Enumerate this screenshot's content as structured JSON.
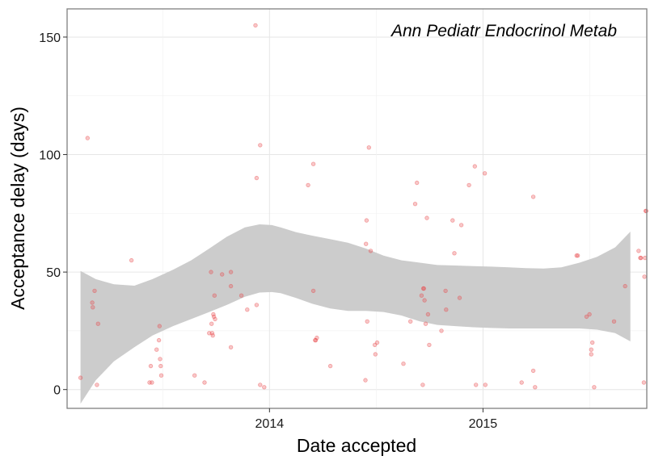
{
  "chart_data": {
    "type": "scatter",
    "title": "",
    "annotation": "Ann Pediatr Endocrinol Metab",
    "xlabel": "Date accepted",
    "ylabel": "Acceptance delay (days)",
    "x_ticks": [
      {
        "value": "2014-01-01",
        "label": "2014"
      },
      {
        "value": "2015-01-01",
        "label": "2015"
      }
    ],
    "y_ticks": [
      0,
      50,
      100,
      150
    ],
    "xlim": [
      "2013-01-20",
      "2015-10-08"
    ],
    "ylim": [
      -8,
      162
    ],
    "grid": true,
    "point_color": "#e8474a",
    "smooth_band_color": "#cccccc",
    "smooth_band": {
      "x": [
        "2013-02-12",
        "2013-03-10",
        "2013-04-10",
        "2013-05-15",
        "2013-06-15",
        "2013-07-20",
        "2013-08-20",
        "2013-09-20",
        "2013-10-20",
        "2013-11-20",
        "2013-12-15",
        "2014-01-05",
        "2014-01-20",
        "2014-02-15",
        "2014-03-15",
        "2014-04-15",
        "2014-05-15",
        "2014-06-15",
        "2014-07-15",
        "2014-08-15",
        "2014-09-15",
        "2014-10-15",
        "2014-11-15",
        "2014-12-15",
        "2015-01-15",
        "2015-02-15",
        "2015-03-15",
        "2015-04-15",
        "2015-05-15",
        "2015-06-15",
        "2015-07-15",
        "2015-08-15",
        "2015-09-10"
      ],
      "upper": [
        50.5,
        47.0,
        44.8,
        44.2,
        47.0,
        51.0,
        55.0,
        60.0,
        65.0,
        69.0,
        70.3,
        70.0,
        69.0,
        67.0,
        65.5,
        64.0,
        62.5,
        60.0,
        57.0,
        55.0,
        54.0,
        53.0,
        52.8,
        52.5,
        52.3,
        52.0,
        51.7,
        51.5,
        52.0,
        54.0,
        56.5,
        60.5,
        67.2
      ],
      "lower": [
        -6.0,
        4.0,
        12.0,
        18.0,
        23.0,
        27.0,
        30.0,
        33.0,
        36.0,
        39.5,
        41.3,
        41.5,
        41.0,
        39.0,
        36.5,
        34.5,
        33.5,
        33.5,
        33.0,
        31.5,
        29.0,
        27.5,
        27.0,
        26.5,
        26.2,
        26.0,
        26.0,
        26.0,
        26.0,
        26.0,
        25.5,
        24.0,
        20.5
      ]
    },
    "points": [
      {
        "x": "2013-02-12",
        "y": 5
      },
      {
        "x": "2013-02-24",
        "y": 107
      },
      {
        "x": "2013-03-04",
        "y": 37
      },
      {
        "x": "2013-03-05",
        "y": 35
      },
      {
        "x": "2013-03-08",
        "y": 42
      },
      {
        "x": "2013-03-12",
        "y": 2
      },
      {
        "x": "2013-03-14",
        "y": 28
      },
      {
        "x": "2013-05-10",
        "y": 55
      },
      {
        "x": "2013-06-10",
        "y": 3
      },
      {
        "x": "2013-06-12",
        "y": 10
      },
      {
        "x": "2013-06-14",
        "y": 3
      },
      {
        "x": "2013-06-22",
        "y": 17
      },
      {
        "x": "2013-06-26",
        "y": 21
      },
      {
        "x": "2013-06-27",
        "y": 27
      },
      {
        "x": "2013-06-28",
        "y": 13
      },
      {
        "x": "2013-06-29",
        "y": 10
      },
      {
        "x": "2013-06-30",
        "y": 6
      },
      {
        "x": "2013-08-26",
        "y": 6
      },
      {
        "x": "2013-09-12",
        "y": 3
      },
      {
        "x": "2013-09-20",
        "y": 24
      },
      {
        "x": "2013-09-23",
        "y": 50
      },
      {
        "x": "2013-09-24",
        "y": 28
      },
      {
        "x": "2013-09-25",
        "y": 24
      },
      {
        "x": "2013-09-26",
        "y": 23
      },
      {
        "x": "2013-09-27",
        "y": 32
      },
      {
        "x": "2013-09-28",
        "y": 31
      },
      {
        "x": "2013-09-29",
        "y": 40
      },
      {
        "x": "2013-09-30",
        "y": 30
      },
      {
        "x": "2013-10-12",
        "y": 49
      },
      {
        "x": "2013-10-27",
        "y": 18
      },
      {
        "x": "2013-10-27",
        "y": 44
      },
      {
        "x": "2013-10-27",
        "y": 50
      },
      {
        "x": "2013-11-14",
        "y": 40
      },
      {
        "x": "2013-11-24",
        "y": 34
      },
      {
        "x": "2013-12-08",
        "y": 155
      },
      {
        "x": "2013-12-10",
        "y": 90
      },
      {
        "x": "2013-12-10",
        "y": 36
      },
      {
        "x": "2013-12-16",
        "y": 104
      },
      {
        "x": "2013-12-16",
        "y": 2
      },
      {
        "x": "2013-12-23",
        "y": 1
      },
      {
        "x": "2014-03-08",
        "y": 87
      },
      {
        "x": "2014-03-17",
        "y": 96
      },
      {
        "x": "2014-03-17",
        "y": 42
      },
      {
        "x": "2014-03-20",
        "y": 21
      },
      {
        "x": "2014-03-21",
        "y": 21
      },
      {
        "x": "2014-03-23",
        "y": 22
      },
      {
        "x": "2014-04-15",
        "y": 10
      },
      {
        "x": "2014-06-14",
        "y": 4
      },
      {
        "x": "2014-06-15",
        "y": 62
      },
      {
        "x": "2014-06-16",
        "y": 72
      },
      {
        "x": "2014-06-17",
        "y": 29
      },
      {
        "x": "2014-06-20",
        "y": 103
      },
      {
        "x": "2014-06-23",
        "y": 59
      },
      {
        "x": "2014-06-30",
        "y": 19
      },
      {
        "x": "2014-07-01",
        "y": 15
      },
      {
        "x": "2014-07-04",
        "y": 20
      },
      {
        "x": "2014-08-18",
        "y": 11
      },
      {
        "x": "2014-08-30",
        "y": 29
      },
      {
        "x": "2014-09-07",
        "y": 79
      },
      {
        "x": "2014-09-10",
        "y": 88
      },
      {
        "x": "2014-09-18",
        "y": 40
      },
      {
        "x": "2014-09-20",
        "y": 2
      },
      {
        "x": "2014-09-21",
        "y": 43
      },
      {
        "x": "2014-09-22",
        "y": 43
      },
      {
        "x": "2014-09-23",
        "y": 38
      },
      {
        "x": "2014-09-25",
        "y": 28
      },
      {
        "x": "2014-09-27",
        "y": 73
      },
      {
        "x": "2014-09-29",
        "y": 32
      },
      {
        "x": "2014-10-01",
        "y": 19
      },
      {
        "x": "2014-10-22",
        "y": 25
      },
      {
        "x": "2014-10-29",
        "y": 42
      },
      {
        "x": "2014-10-30",
        "y": 34
      },
      {
        "x": "2014-11-10",
        "y": 72
      },
      {
        "x": "2014-11-13",
        "y": 58
      },
      {
        "x": "2014-11-22",
        "y": 39
      },
      {
        "x": "2014-11-25",
        "y": 70
      },
      {
        "x": "2014-12-08",
        "y": 87
      },
      {
        "x": "2014-12-18",
        "y": 95
      },
      {
        "x": "2014-12-20",
        "y": 2
      },
      {
        "x": "2015-01-04",
        "y": 92
      },
      {
        "x": "2015-01-05",
        "y": 2
      },
      {
        "x": "2015-03-08",
        "y": 3
      },
      {
        "x": "2015-03-28",
        "y": 82
      },
      {
        "x": "2015-03-28",
        "y": 8
      },
      {
        "x": "2015-03-31",
        "y": 1
      },
      {
        "x": "2015-06-10",
        "y": 57
      },
      {
        "x": "2015-06-12",
        "y": 57
      },
      {
        "x": "2015-06-27",
        "y": 31
      },
      {
        "x": "2015-07-02",
        "y": 32
      },
      {
        "x": "2015-07-05",
        "y": 17
      },
      {
        "x": "2015-07-05",
        "y": 15
      },
      {
        "x": "2015-07-07",
        "y": 20
      },
      {
        "x": "2015-07-10",
        "y": 1
      },
      {
        "x": "2015-08-13",
        "y": 29
      },
      {
        "x": "2015-09-01",
        "y": 44
      },
      {
        "x": "2015-09-24",
        "y": 59
      },
      {
        "x": "2015-09-27",
        "y": 56
      },
      {
        "x": "2015-09-28",
        "y": 56
      },
      {
        "x": "2015-10-03",
        "y": 3
      },
      {
        "x": "2015-10-04",
        "y": 48
      },
      {
        "x": "2015-10-05",
        "y": 56
      },
      {
        "x": "2015-10-06",
        "y": 76
      },
      {
        "x": "2015-10-07",
        "y": 76
      }
    ]
  }
}
